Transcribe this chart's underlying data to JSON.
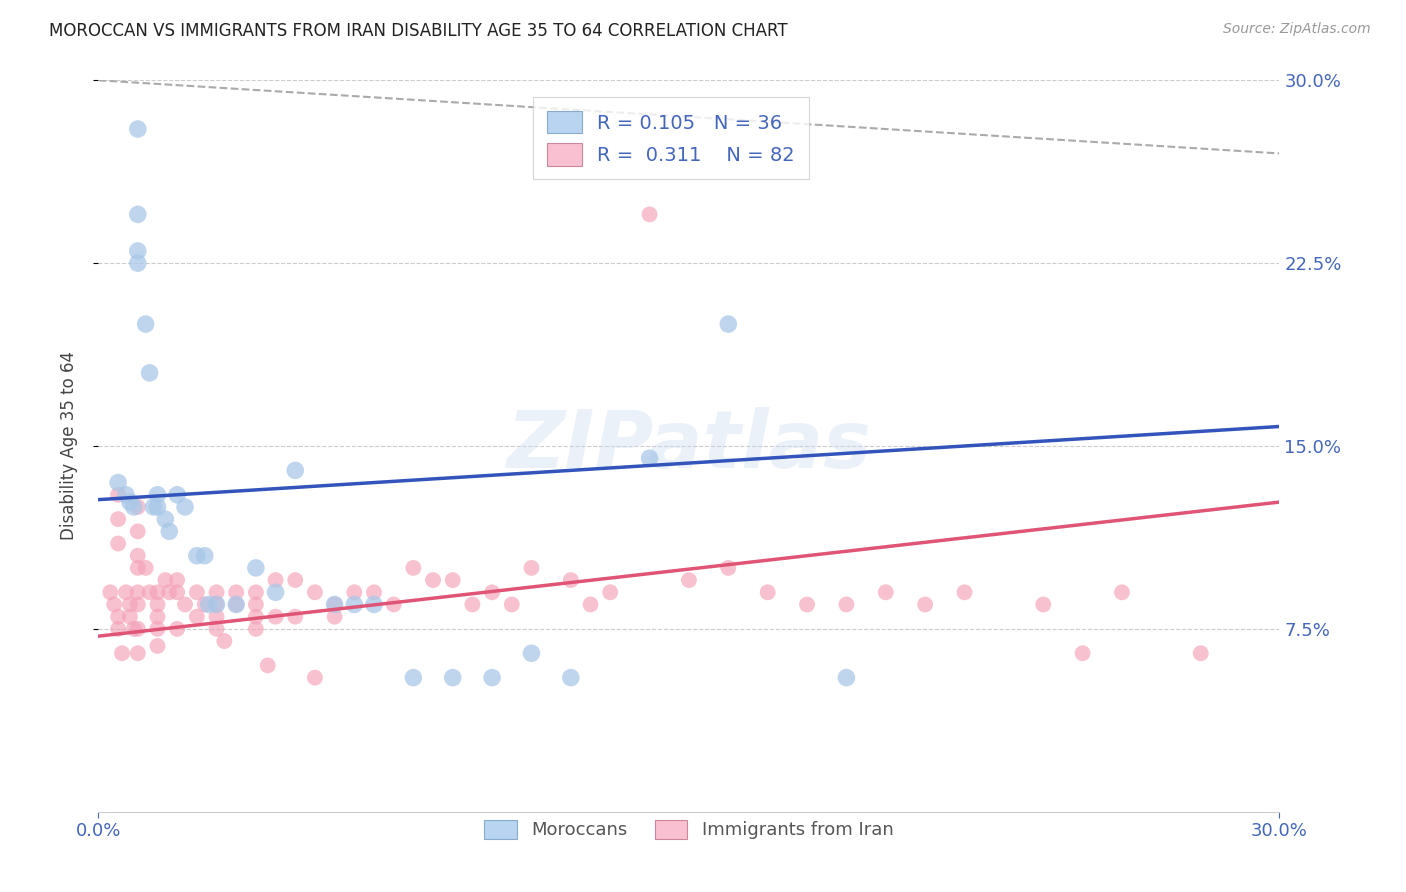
{
  "title": "MOROCCAN VS IMMIGRANTS FROM IRAN DISABILITY AGE 35 TO 64 CORRELATION CHART",
  "source": "Source: ZipAtlas.com",
  "ylabel": "Disability Age 35 to 64",
  "xlim": [
    0.0,
    0.3
  ],
  "ylim": [
    0.0,
    0.3
  ],
  "grid_color": "#cccccc",
  "background_color": "#ffffff",
  "watermark": "ZIPatlas",
  "legend_moroccan_R": "0.105",
  "legend_moroccan_N": "36",
  "legend_iran_R": "0.311",
  "legend_iran_N": "82",
  "moroccan_color": "#a8c8e8",
  "iran_color": "#f4a0b8",
  "moroccan_line_color": "#3355bb",
  "iran_line_color": "#e05575",
  "dashed_line_color": "#aaaaaa",
  "legend_box_color_moroccan": "#b8d4f0",
  "legend_box_color_iran": "#f8c0d0",
  "axis_label_color": "#4466bb",
  "moroccan_x": [
    0.005,
    0.007,
    0.008,
    0.009,
    0.01,
    0.01,
    0.01,
    0.01,
    0.012,
    0.013,
    0.014,
    0.015,
    0.015,
    0.017,
    0.018,
    0.02,
    0.022,
    0.025,
    0.027,
    0.028,
    0.03,
    0.035,
    0.04,
    0.045,
    0.05,
    0.06,
    0.065,
    0.07,
    0.08,
    0.09,
    0.1,
    0.11,
    0.12,
    0.14,
    0.16,
    0.19
  ],
  "moroccan_y": [
    0.135,
    0.13,
    0.127,
    0.125,
    0.28,
    0.245,
    0.23,
    0.225,
    0.2,
    0.18,
    0.125,
    0.13,
    0.125,
    0.12,
    0.115,
    0.13,
    0.125,
    0.105,
    0.105,
    0.085,
    0.085,
    0.085,
    0.1,
    0.09,
    0.14,
    0.085,
    0.085,
    0.085,
    0.055,
    0.055,
    0.055,
    0.065,
    0.055,
    0.145,
    0.2,
    0.055
  ],
  "iran_x": [
    0.003,
    0.004,
    0.005,
    0.005,
    0.005,
    0.005,
    0.005,
    0.006,
    0.007,
    0.008,
    0.008,
    0.009,
    0.01,
    0.01,
    0.01,
    0.01,
    0.01,
    0.01,
    0.01,
    0.01,
    0.012,
    0.013,
    0.015,
    0.015,
    0.015,
    0.015,
    0.015,
    0.017,
    0.018,
    0.02,
    0.02,
    0.02,
    0.022,
    0.025,
    0.025,
    0.027,
    0.03,
    0.03,
    0.03,
    0.03,
    0.032,
    0.035,
    0.035,
    0.04,
    0.04,
    0.04,
    0.04,
    0.043,
    0.045,
    0.045,
    0.05,
    0.05,
    0.055,
    0.055,
    0.06,
    0.06,
    0.065,
    0.07,
    0.075,
    0.08,
    0.085,
    0.09,
    0.095,
    0.1,
    0.105,
    0.11,
    0.12,
    0.125,
    0.13,
    0.14,
    0.15,
    0.16,
    0.17,
    0.18,
    0.19,
    0.2,
    0.21,
    0.22,
    0.24,
    0.25,
    0.26,
    0.28
  ],
  "iran_y": [
    0.09,
    0.085,
    0.13,
    0.12,
    0.11,
    0.08,
    0.075,
    0.065,
    0.09,
    0.085,
    0.08,
    0.075,
    0.125,
    0.115,
    0.105,
    0.1,
    0.09,
    0.085,
    0.075,
    0.065,
    0.1,
    0.09,
    0.09,
    0.085,
    0.08,
    0.075,
    0.068,
    0.095,
    0.09,
    0.095,
    0.09,
    0.075,
    0.085,
    0.09,
    0.08,
    0.085,
    0.09,
    0.085,
    0.08,
    0.075,
    0.07,
    0.09,
    0.085,
    0.09,
    0.085,
    0.08,
    0.075,
    0.06,
    0.095,
    0.08,
    0.095,
    0.08,
    0.09,
    0.055,
    0.085,
    0.08,
    0.09,
    0.09,
    0.085,
    0.1,
    0.095,
    0.095,
    0.085,
    0.09,
    0.085,
    0.1,
    0.095,
    0.085,
    0.09,
    0.245,
    0.095,
    0.1,
    0.09,
    0.085,
    0.085,
    0.09,
    0.085,
    0.09,
    0.085,
    0.065,
    0.09,
    0.065
  ],
  "moroc_line_x": [
    0.0,
    0.3
  ],
  "moroc_line_y": [
    0.128,
    0.158
  ],
  "iran_line_x": [
    0.0,
    0.3
  ],
  "iran_line_y": [
    0.072,
    0.127
  ],
  "dash_line_x": [
    0.0,
    0.3
  ],
  "dash_line_y": [
    0.3,
    0.27
  ]
}
